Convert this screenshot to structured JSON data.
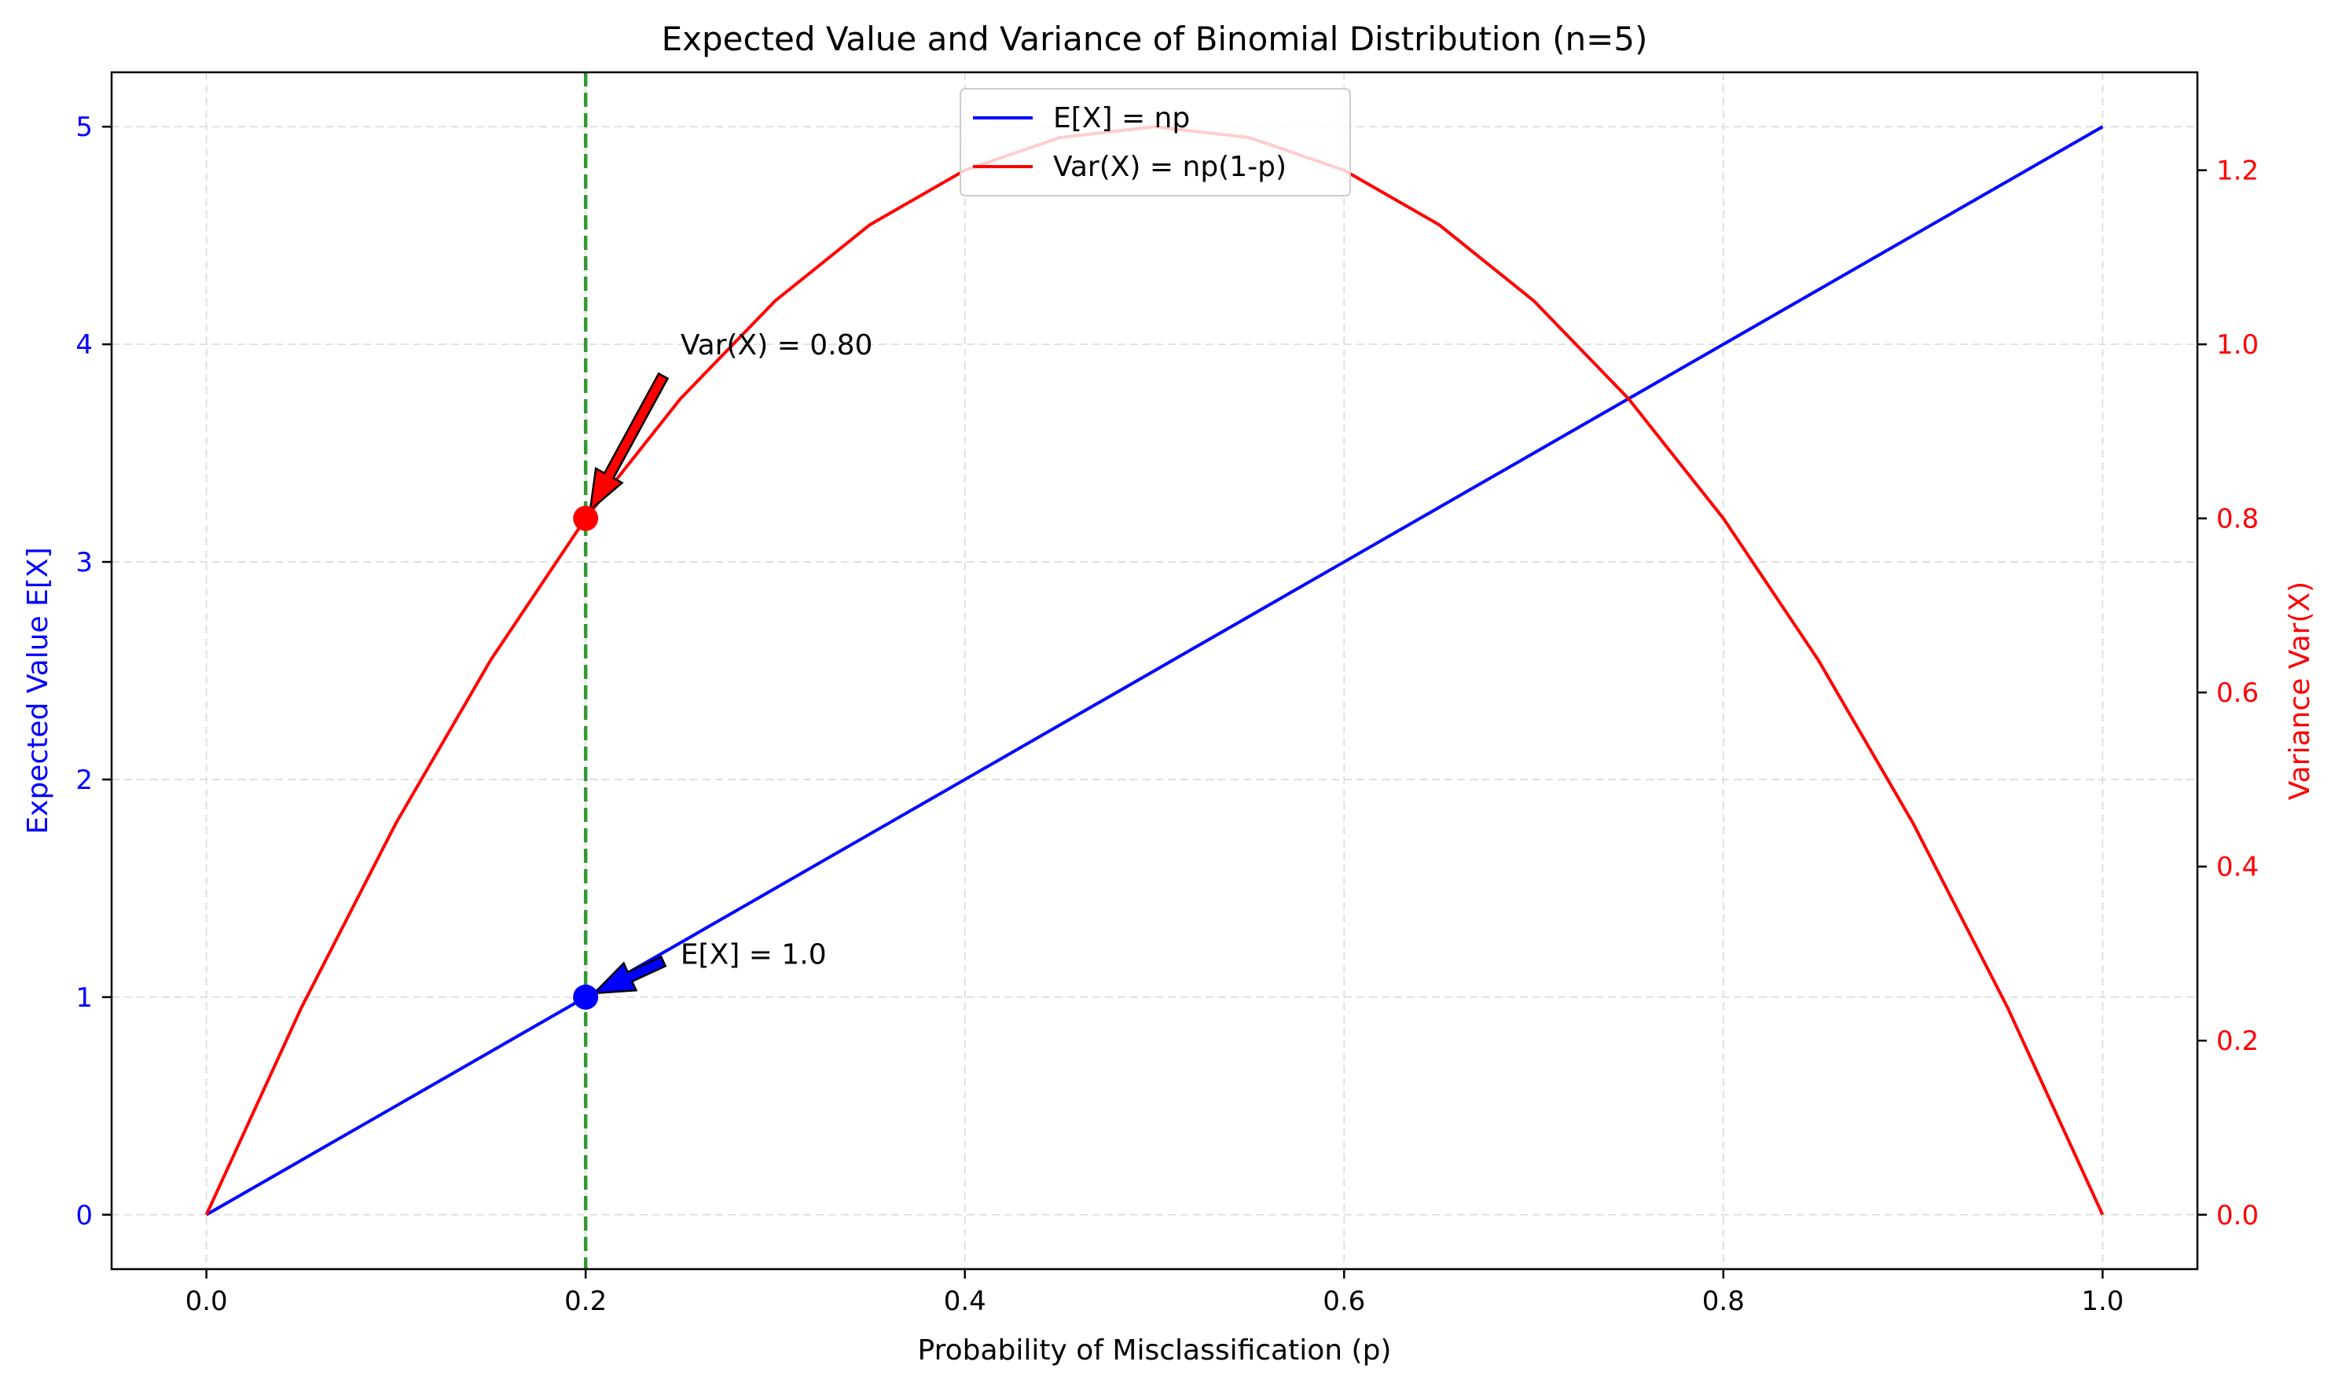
{
  "chart_data": {
    "type": "line",
    "title": "Expected Value and Variance of Binomial Distribution (n=5)",
    "xlabel": "Probability of Misclassification (p)",
    "ylabel_left": "Expected Value E[X]",
    "ylabel_right": "Variance Var(X)",
    "xlim": [
      -0.05,
      1.05
    ],
    "ylim_left": [
      -0.25,
      5.25
    ],
    "ylim_right": [
      -0.0625,
      1.3125
    ],
    "x_ticks": [
      0.0,
      0.2,
      0.4,
      0.6,
      0.8,
      1.0
    ],
    "x_tick_labels": [
      "0.0",
      "0.2",
      "0.4",
      "0.6",
      "0.8",
      "1.0"
    ],
    "y_left_ticks": [
      0,
      1,
      2,
      3,
      4,
      5
    ],
    "y_left_tick_labels": [
      "0",
      "1",
      "2",
      "3",
      "4",
      "5"
    ],
    "y_right_ticks": [
      0.0,
      0.2,
      0.4,
      0.6,
      0.8,
      1.0,
      1.2
    ],
    "y_right_tick_labels": [
      "0.0",
      "0.2",
      "0.4",
      "0.6",
      "0.8",
      "1.0",
      "1.2"
    ],
    "grid": true,
    "legend_position": "top-center",
    "series": [
      {
        "name": "E[X] = np",
        "axis": "left",
        "color": "#0000ff",
        "x": [
          0.0,
          0.1,
          0.2,
          0.3,
          0.4,
          0.5,
          0.6,
          0.7,
          0.8,
          0.9,
          1.0
        ],
        "values": [
          0.0,
          0.5,
          1.0,
          1.5,
          2.0,
          2.5,
          3.0,
          3.5,
          4.0,
          4.5,
          5.0
        ]
      },
      {
        "name": "Var(X) = np(1-p)",
        "axis": "right",
        "color": "#ff0000",
        "x": [
          0.0,
          0.05,
          0.1,
          0.15,
          0.2,
          0.25,
          0.3,
          0.35,
          0.4,
          0.45,
          0.5,
          0.55,
          0.6,
          0.65,
          0.7,
          0.75,
          0.8,
          0.85,
          0.9,
          0.95,
          1.0
        ],
        "values": [
          0.0,
          0.2375,
          0.45,
          0.6375,
          0.8,
          0.9375,
          1.05,
          1.1375,
          1.2,
          1.2375,
          1.25,
          1.2375,
          1.2,
          1.1375,
          1.05,
          0.9375,
          0.8,
          0.6375,
          0.45,
          0.2375,
          0.0
        ]
      }
    ],
    "vertical_line": {
      "x": 0.2,
      "color": "#339933",
      "style": "dashed"
    },
    "highlight_points": [
      {
        "series": "E[X] = np",
        "axis": "left",
        "x": 0.2,
        "y": 1.0,
        "color": "#0000ff"
      },
      {
        "series": "Var(X) = np(1-p)",
        "axis": "right",
        "x": 0.2,
        "y": 0.8,
        "color": "#ff0000"
      }
    ],
    "annotations": [
      {
        "text": "E[X] = 1.0",
        "axis": "left",
        "x": 0.25,
        "y": 1.2,
        "arrow_to_x": 0.2,
        "arrow_to_y": 1.0,
        "color": "#0000ff"
      },
      {
        "text": "Var(X) = 0.80",
        "axis": "right",
        "x": 0.25,
        "y": 1.0,
        "arrow_to_x": 0.2,
        "arrow_to_y": 0.8,
        "color": "#ff0000"
      }
    ],
    "colors": {
      "left_axis": "#0000ff",
      "right_axis": "#ff0000",
      "grid": "#dddddd",
      "text": "#000000"
    }
  }
}
